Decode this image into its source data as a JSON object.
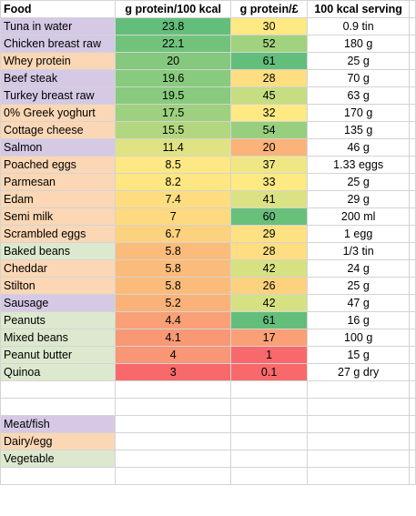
{
  "headers": [
    "Food",
    "g protein/100 kcal",
    "g protein/£",
    "100 kcal serving"
  ],
  "colors": {
    "meat_fish": "#d5c9e6",
    "dairy_egg": "#fbd7b5",
    "vegetable": "#dde9cf"
  },
  "rows": [
    {
      "food": "Tuna in water",
      "category": "meat_fish",
      "protein_per_kcal": "23.8",
      "protein_per_kcal_color": "#63be7b",
      "protein_per_gbp": "30",
      "protein_per_gbp_color": "#fee983",
      "serving": "0.9 tin"
    },
    {
      "food": "Chicken breast raw",
      "category": "meat_fish",
      "protein_per_kcal": "22.1",
      "protein_per_kcal_color": "#71c37c",
      "protein_per_gbp": "52",
      "protein_per_gbp_color": "#a0d27f",
      "serving": "180 g"
    },
    {
      "food": "Whey protein",
      "category": "dairy_egg",
      "protein_per_kcal": "20",
      "protein_per_kcal_color": "#84c97d",
      "protein_per_gbp": "61",
      "protein_per_gbp_color": "#63be7b",
      "serving": "25 g"
    },
    {
      "food": "Beef steak",
      "category": "meat_fish",
      "protein_per_kcal": "19.6",
      "protein_per_kcal_color": "#88ca7e",
      "protein_per_gbp": "28",
      "protein_per_gbp_color": "#fede81",
      "serving": "70 g"
    },
    {
      "food": "Turkey breast raw",
      "category": "meat_fish",
      "protein_per_kcal": "19.5",
      "protein_per_kcal_color": "#88ca7e",
      "protein_per_gbp": "45",
      "protein_per_gbp_color": "#c6dd81",
      "serving": "63 g"
    },
    {
      "food": "0% Greek yoghurt",
      "category": "dairy_egg",
      "protein_per_kcal": "17.5",
      "protein_per_kcal_color": "#9dd07f",
      "protein_per_gbp": "32",
      "protein_per_gbp_color": "#fee983",
      "serving": "170 g"
    },
    {
      "food": "Cottage cheese",
      "category": "dairy_egg",
      "protein_per_kcal": "15.5",
      "protein_per_kcal_color": "#b3d780",
      "protein_per_gbp": "54",
      "protein_per_gbp_color": "#98cf7e",
      "serving": "135 g"
    },
    {
      "food": "Salmon",
      "category": "meat_fish",
      "protein_per_kcal": "11.4",
      "protein_per_kcal_color": "#dfe383",
      "protein_per_gbp": "20",
      "protein_per_gbp_color": "#fbb379",
      "serving": "46 g"
    },
    {
      "food": "Poached eggs",
      "category": "dairy_egg",
      "protein_per_kcal": "8.5",
      "protein_per_kcal_color": "#fde883",
      "protein_per_gbp": "37",
      "protein_per_gbp_color": "#f0e784",
      "serving": "1.33 eggs"
    },
    {
      "food": "Parmesan",
      "category": "dairy_egg",
      "protein_per_kcal": "8.2",
      "protein_per_kcal_color": "#fee683",
      "protein_per_gbp": "33",
      "protein_per_gbp_color": "#fee983",
      "serving": "25 g"
    },
    {
      "food": "Edam",
      "category": "dairy_egg",
      "protein_per_kcal": "7.4",
      "protein_per_kcal_color": "#fedd81",
      "protein_per_gbp": "41",
      "protein_per_gbp_color": "#dbe283",
      "serving": "29 g"
    },
    {
      "food": "Semi milk",
      "category": "dairy_egg",
      "protein_per_kcal": "7",
      "protein_per_kcal_color": "#fed980",
      "protein_per_gbp": "60",
      "protein_per_gbp_color": "#69c07b",
      "serving": "200 ml"
    },
    {
      "food": "Scrambled eggs",
      "category": "dairy_egg",
      "protein_per_kcal": "6.7",
      "protein_per_kcal_color": "#fdd27f",
      "protein_per_gbp": "29",
      "protein_per_gbp_color": "#fee182",
      "serving": "1 egg"
    },
    {
      "food": "Baked beans",
      "category": "vegetable",
      "protein_per_kcal": "5.8",
      "protein_per_kcal_color": "#fbbc7b",
      "protein_per_gbp": "28",
      "protein_per_gbp_color": "#fede81",
      "serving": "1/3 tin"
    },
    {
      "food": "Cheddar",
      "category": "dairy_egg",
      "protein_per_kcal": "5.8",
      "protein_per_kcal_color": "#fbbc7b",
      "protein_per_gbp": "42",
      "protein_per_gbp_color": "#d6e182",
      "serving": "24 g"
    },
    {
      "food": "Stilton",
      "category": "dairy_egg",
      "protein_per_kcal": "5.8",
      "protein_per_kcal_color": "#fbbc7b",
      "protein_per_gbp": "26",
      "protein_per_gbp_color": "#fdd27f",
      "serving": "25 g"
    },
    {
      "food": "Sausage",
      "category": "meat_fish",
      "protein_per_kcal": "5.2",
      "protein_per_kcal_color": "#fab279",
      "protein_per_gbp": "42",
      "protein_per_gbp_color": "#d6e182",
      "serving": "47 g"
    },
    {
      "food": "Peanuts",
      "category": "vegetable",
      "protein_per_kcal": "4.4",
      "protein_per_kcal_color": "#f9a076",
      "protein_per_gbp": "61",
      "protein_per_gbp_color": "#63be7b",
      "serving": "16 g"
    },
    {
      "food": "Mixed beans",
      "category": "vegetable",
      "protein_per_kcal": "4.1",
      "protein_per_kcal_color": "#f89875",
      "protein_per_gbp": "17",
      "protein_per_gbp_color": "#fa9f76",
      "serving": "100 g"
    },
    {
      "food": "Peanut butter",
      "category": "vegetable",
      "protein_per_kcal": "4",
      "protein_per_kcal_color": "#f89675",
      "protein_per_gbp": "1",
      "protein_per_gbp_color": "#f8696b",
      "serving": "15 g"
    },
    {
      "food": "Quinoa",
      "category": "vegetable",
      "protein_per_kcal": "3",
      "protein_per_kcal_color": "#f8696b",
      "protein_per_gbp": "0.1",
      "protein_per_gbp_color": "#f8696b",
      "serving": "27 g dry"
    }
  ],
  "legend": [
    {
      "label": "Meat/fish",
      "category": "meat_fish"
    },
    {
      "label": "Dairy/egg",
      "category": "dairy_egg"
    },
    {
      "label": "Vegetable",
      "category": "vegetable"
    }
  ],
  "blank_rows_before_legend": 2,
  "blank_rows_after_legend": 1
}
